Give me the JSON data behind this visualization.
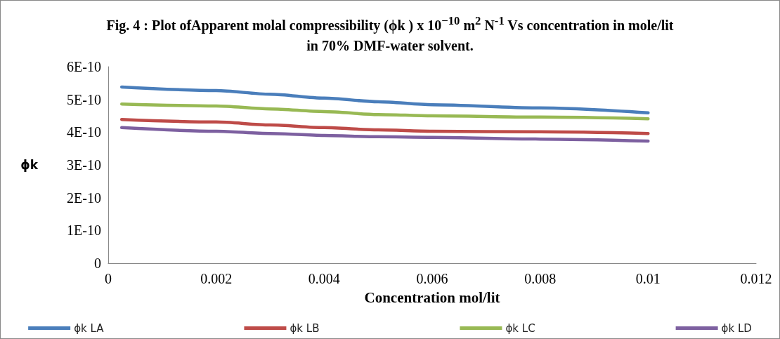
{
  "chart_data": {
    "type": "line",
    "title": "Fig. 4 : Plot ofApparent molal compressibility (ϕk ) x 10$^{−10}$ m$^{2}$ N$^{-1}$ Vs concentration in mole/lit in 70%  DMF-water solvent.",
    "xlabel": "Concentration mol/lit",
    "ylabel": "ϕk",
    "x": [
      0.00025,
      0.002,
      0.003,
      0.004,
      0.005,
      0.006,
      0.008,
      0.01
    ],
    "series": [
      {
        "name": "ϕk LA",
        "color": "#4a7ebb",
        "values": [
          5.38e-10,
          5.27e-10,
          5.16e-10,
          5.04e-10,
          4.93e-10,
          4.84e-10,
          4.74e-10,
          4.59e-10
        ]
      },
      {
        "name": "ϕk LB",
        "color": "#be4b48",
        "values": [
          4.39e-10,
          4.31e-10,
          4.22e-10,
          4.14e-10,
          4.07e-10,
          4.03e-10,
          4.01e-10,
          3.96e-10
        ]
      },
      {
        "name": "ϕk LC",
        "color": "#98b954",
        "values": [
          4.86e-10,
          4.8e-10,
          4.71e-10,
          4.63e-10,
          4.54e-10,
          4.5e-10,
          4.46e-10,
          4.41e-10
        ]
      },
      {
        "name": "ϕk LD",
        "color": "#7d60a0",
        "values": [
          4.14e-10,
          4.03e-10,
          3.96e-10,
          3.9e-10,
          3.86e-10,
          3.84e-10,
          3.79e-10,
          3.73e-10
        ]
      }
    ],
    "xlim": [
      0,
      0.012
    ],
    "xticks": [
      0,
      0.002,
      0.004,
      0.006,
      0.008,
      0.01,
      0.012
    ],
    "ylim": [
      0,
      6e-10
    ],
    "yticks": [
      0,
      {
        "value": 1e-10,
        "label": "1E-10"
      },
      {
        "value": 2e-10,
        "label": "2E-10"
      },
      {
        "value": 3e-10,
        "label": "3E-10"
      },
      {
        "value": 4e-10,
        "label": "4E-10"
      },
      {
        "value": 5e-10,
        "label": "5E-10"
      },
      {
        "value": 6e-10,
        "label": "6E-10"
      }
    ],
    "legend": "bottom",
    "marker": "none",
    "line_style": "solid"
  }
}
